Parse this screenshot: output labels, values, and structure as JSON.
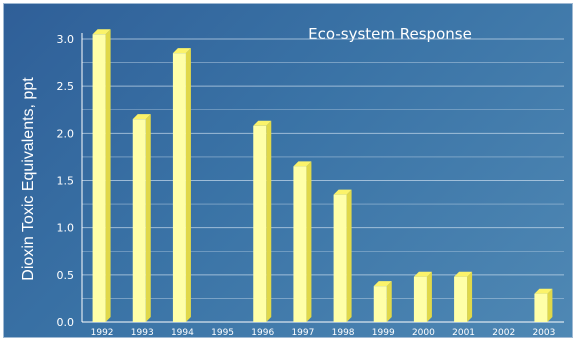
{
  "chart_data": {
    "type": "bar",
    "title": "Eco-system Response",
    "xlabel": "",
    "ylabel": "Dioxin Toxic Equivalents, ppt",
    "categories": [
      "1992",
      "1993",
      "1994",
      "1995",
      "1996",
      "1997",
      "1998",
      "1999",
      "2000",
      "2001",
      "2002",
      "2003"
    ],
    "values": [
      3.05,
      2.15,
      2.85,
      null,
      2.08,
      1.65,
      1.35,
      0.38,
      0.48,
      0.48,
      null,
      0.3
    ],
    "ylim": [
      0,
      3.0
    ],
    "yticks": [
      "0.0",
      "0.5",
      "1.0",
      "1.5",
      "2.0",
      "2.5",
      "3.0"
    ],
    "grid": true,
    "legend": "none",
    "colors": {
      "bar_front": "#ffffa8",
      "bar_side": "#e0d84a",
      "bar_top": "#fbf36a",
      "grid": "#c9dcec",
      "axis": "#ffffff"
    }
  }
}
